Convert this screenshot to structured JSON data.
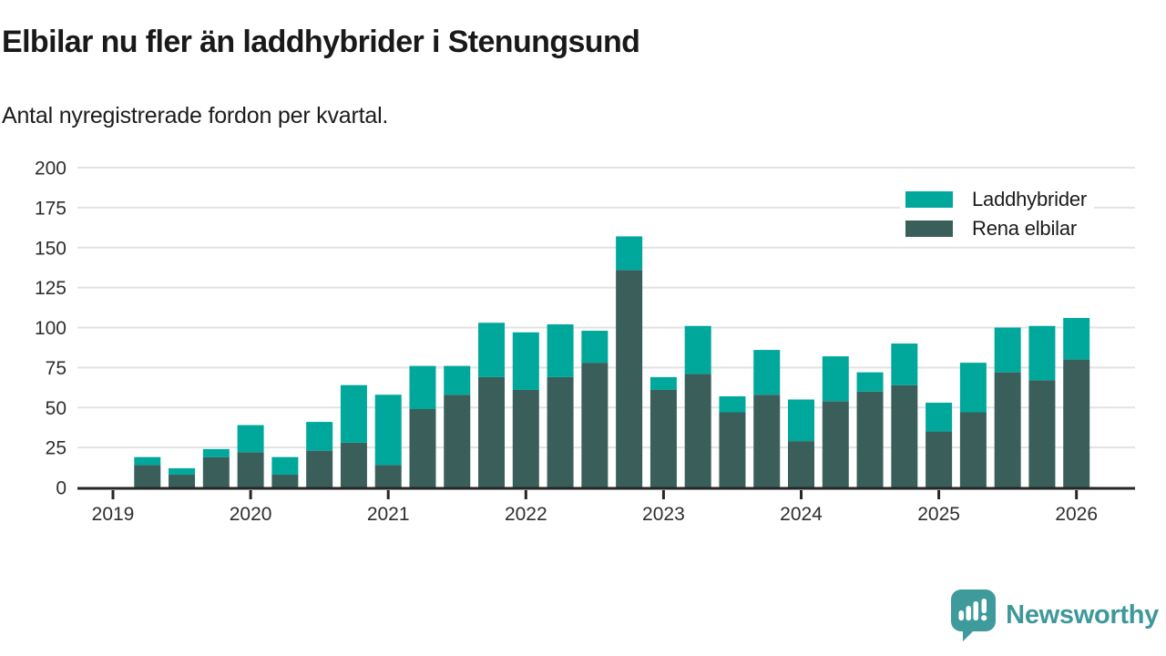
{
  "header": {
    "title": "Elbilar nu fler än laddhybrider i Stenungsund",
    "subtitle": "Antal nyregistrerade fordon per kvartal."
  },
  "legend": {
    "items": [
      {
        "label": "Laddhybrider",
        "color": "#00a89c"
      },
      {
        "label": "Rena elbilar",
        "color": "#3a5f5b"
      }
    ]
  },
  "chart_data": {
    "type": "bar",
    "stacked": true,
    "title": "Elbilar nu fler än laddhybrider i Stenungsund",
    "subtitle": "Antal nyregistrerade fordon per kvartal.",
    "x": [
      "2019 Q2",
      "2019 Q3",
      "2019 Q4",
      "2020 Q1",
      "2020 Q2",
      "2020 Q3",
      "2020 Q4",
      "2021 Q1",
      "2021 Q2",
      "2021 Q3",
      "2021 Q4",
      "2022 Q1",
      "2022 Q2",
      "2022 Q3",
      "2022 Q4",
      "2023 Q1",
      "2023 Q2",
      "2023 Q3",
      "2023 Q4",
      "2024 Q1",
      "2024 Q2",
      "2024 Q3",
      "2024 Q4",
      "2025 Q1",
      "2025 Q2",
      "2025 Q3",
      "2025 Q4",
      "2026 Q1"
    ],
    "series": [
      {
        "name": "Rena elbilar",
        "color": "#3a5f5b",
        "values": [
          14,
          8,
          19,
          22,
          8,
          23,
          28,
          14,
          49,
          58,
          69,
          61,
          69,
          78,
          136,
          61,
          71,
          47,
          58,
          29,
          54,
          60,
          64,
          35,
          47,
          72,
          67,
          80
        ]
      },
      {
        "name": "Laddhybrider",
        "color": "#00a89c",
        "values": [
          5,
          4,
          5,
          17,
          11,
          18,
          36,
          44,
          27,
          18,
          34,
          36,
          33,
          20,
          21,
          8,
          30,
          10,
          28,
          26,
          28,
          12,
          26,
          18,
          31,
          28,
          34,
          26
        ]
      }
    ],
    "ylim": [
      0,
      200
    ],
    "yticks": [
      "0",
      "25",
      "50",
      "75",
      "100",
      "125",
      "150",
      "175",
      "200"
    ],
    "xticks": [
      "2019",
      "2020",
      "2021",
      "2022",
      "2023",
      "2024",
      "2025",
      "2026"
    ],
    "xlabel": "",
    "ylabel": "",
    "grid": true,
    "legend_position": "top-right"
  },
  "footer": {
    "brand": "Newsworthy",
    "brand_color": "#3e9899"
  }
}
